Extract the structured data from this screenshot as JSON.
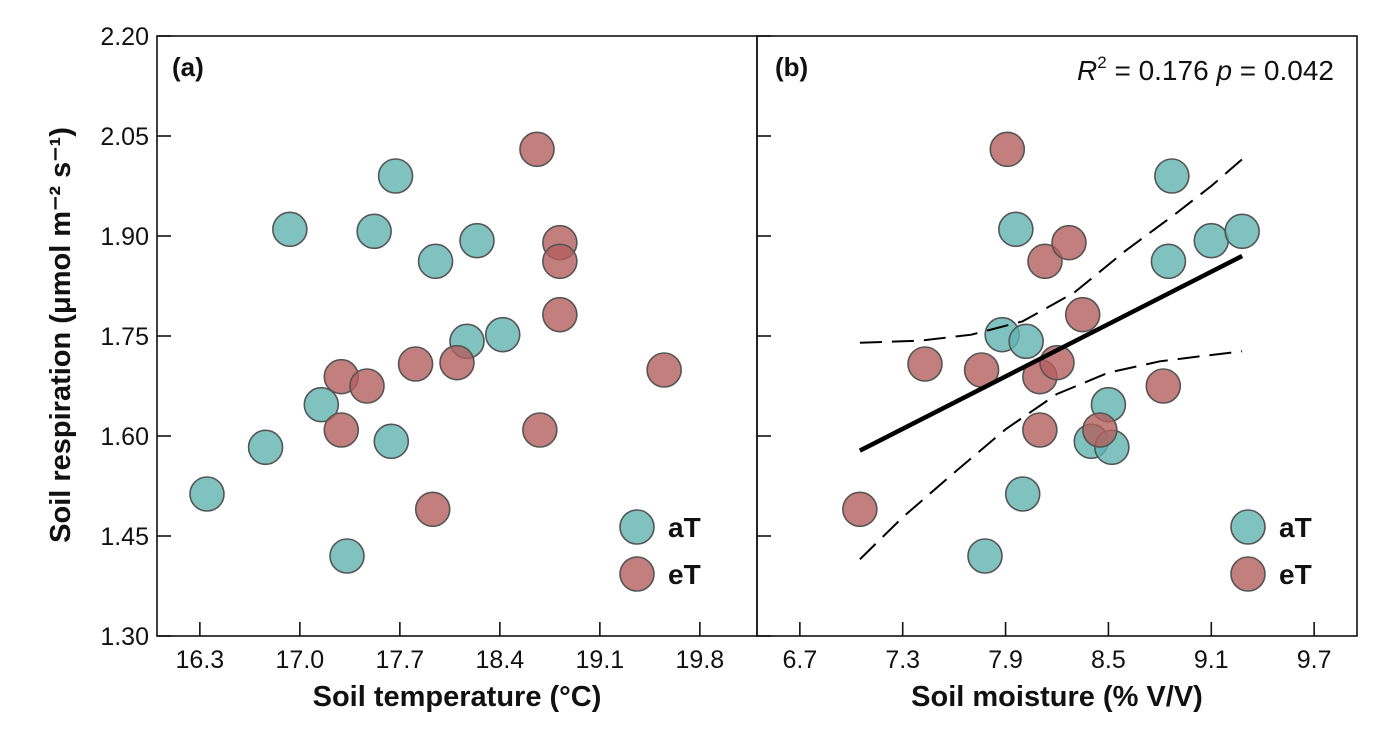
{
  "colors": {
    "aT": "#5fb3b0",
    "eT": "#b35f5c",
    "stroke": "#555555",
    "axis": "#111111"
  },
  "chart_data": [
    {
      "type": "scatter",
      "panel_label": "(a)",
      "xlabel": "Soil temperature (°C)",
      "ylabel": "Soil respiration (μmol m⁻² s⁻¹)",
      "xlim": [
        16.0,
        20.2
      ],
      "ylim": [
        1.3,
        2.2
      ],
      "xticks": [
        "16.3",
        "17.0",
        "17.7",
        "18.4",
        "19.1",
        "19.8"
      ],
      "yticks": [
        "1.30",
        "1.45",
        "1.60",
        "1.75",
        "1.90",
        "2.05",
        "2.20"
      ],
      "legend": {
        "position": "bottom-right",
        "entries": [
          "aT",
          "eT"
        ]
      },
      "series": [
        {
          "name": "aT",
          "points": [
            {
              "x": 16.35,
              "y": 1.513
            },
            {
              "x": 16.76,
              "y": 1.583
            },
            {
              "x": 16.93,
              "y": 1.91
            },
            {
              "x": 17.15,
              "y": 1.647
            },
            {
              "x": 17.33,
              "y": 1.42
            },
            {
              "x": 17.52,
              "y": 1.907
            },
            {
              "x": 17.64,
              "y": 1.592
            },
            {
              "x": 17.67,
              "y": 1.99
            },
            {
              "x": 17.95,
              "y": 1.862
            },
            {
              "x": 18.17,
              "y": 1.742
            },
            {
              "x": 18.24,
              "y": 1.893
            },
            {
              "x": 18.42,
              "y": 1.752
            }
          ]
        },
        {
          "name": "eT",
          "points": [
            {
              "x": 17.29,
              "y": 1.689
            },
            {
              "x": 17.29,
              "y": 1.609
            },
            {
              "x": 17.47,
              "y": 1.675
            },
            {
              "x": 17.81,
              "y": 1.708
            },
            {
              "x": 17.93,
              "y": 1.49
            },
            {
              "x": 18.1,
              "y": 1.71
            },
            {
              "x": 18.66,
              "y": 2.03
            },
            {
              "x": 18.68,
              "y": 1.609
            },
            {
              "x": 18.82,
              "y": 1.89
            },
            {
              "x": 18.82,
              "y": 1.862
            },
            {
              "x": 18.82,
              "y": 1.782
            },
            {
              "x": 19.55,
              "y": 1.699
            }
          ]
        }
      ]
    },
    {
      "type": "scatter",
      "panel_label": "(b)",
      "xlabel": "Soil moisture (% V/V)",
      "xlim": [
        6.45,
        9.95
      ],
      "ylim": [
        1.3,
        2.2
      ],
      "xticks": [
        "6.7",
        "7.3",
        "7.9",
        "8.5",
        "9.1",
        "9.7"
      ],
      "stat_r2_label": "R",
      "stat_r2_exp": "2",
      "stat_r2_value": " = 0.176 ",
      "stat_p_label": "p",
      "stat_p_value": " = 0.042",
      "legend": {
        "position": "bottom-right",
        "entries": [
          "aT",
          "eT"
        ]
      },
      "regression": {
        "x": [
          7.05,
          9.28
        ],
        "y": [
          1.578,
          1.87
        ],
        "ci_upper": [
          {
            "x": 7.05,
            "y": 1.74
          },
          {
            "x": 7.4,
            "y": 1.743
          },
          {
            "x": 7.7,
            "y": 1.752
          },
          {
            "x": 8.0,
            "y": 1.772
          },
          {
            "x": 8.3,
            "y": 1.815
          },
          {
            "x": 8.6,
            "y": 1.878
          },
          {
            "x": 8.9,
            "y": 1.935
          },
          {
            "x": 9.1,
            "y": 1.975
          },
          {
            "x": 9.28,
            "y": 2.015
          }
        ],
        "ci_lower": [
          {
            "x": 7.05,
            "y": 1.415
          },
          {
            "x": 7.3,
            "y": 1.478
          },
          {
            "x": 7.6,
            "y": 1.545
          },
          {
            "x": 7.9,
            "y": 1.61
          },
          {
            "x": 8.2,
            "y": 1.663
          },
          {
            "x": 8.5,
            "y": 1.695
          },
          {
            "x": 8.8,
            "y": 1.712
          },
          {
            "x": 9.05,
            "y": 1.72
          },
          {
            "x": 9.28,
            "y": 1.727
          }
        ]
      },
      "series": [
        {
          "name": "aT",
          "points": [
            {
              "x": 7.78,
              "y": 1.42
            },
            {
              "x": 7.88,
              "y": 1.752
            },
            {
              "x": 7.96,
              "y": 1.91
            },
            {
              "x": 8.0,
              "y": 1.513
            },
            {
              "x": 8.02,
              "y": 1.742
            },
            {
              "x": 8.4,
              "y": 1.592
            },
            {
              "x": 8.5,
              "y": 1.647
            },
            {
              "x": 8.52,
              "y": 1.583
            },
            {
              "x": 8.85,
              "y": 1.862
            },
            {
              "x": 8.87,
              "y": 1.99
            },
            {
              "x": 9.1,
              "y": 1.893
            },
            {
              "x": 9.28,
              "y": 1.907
            }
          ]
        },
        {
          "name": "eT",
          "points": [
            {
              "x": 7.05,
              "y": 1.49
            },
            {
              "x": 7.43,
              "y": 1.708
            },
            {
              "x": 7.76,
              "y": 1.699
            },
            {
              "x": 7.91,
              "y": 2.03
            },
            {
              "x": 8.1,
              "y": 1.689
            },
            {
              "x": 8.1,
              "y": 1.609
            },
            {
              "x": 8.13,
              "y": 1.862
            },
            {
              "x": 8.2,
              "y": 1.71
            },
            {
              "x": 8.27,
              "y": 1.89
            },
            {
              "x": 8.35,
              "y": 1.782
            },
            {
              "x": 8.45,
              "y": 1.609
            },
            {
              "x": 8.82,
              "y": 1.675
            }
          ]
        }
      ]
    }
  ]
}
